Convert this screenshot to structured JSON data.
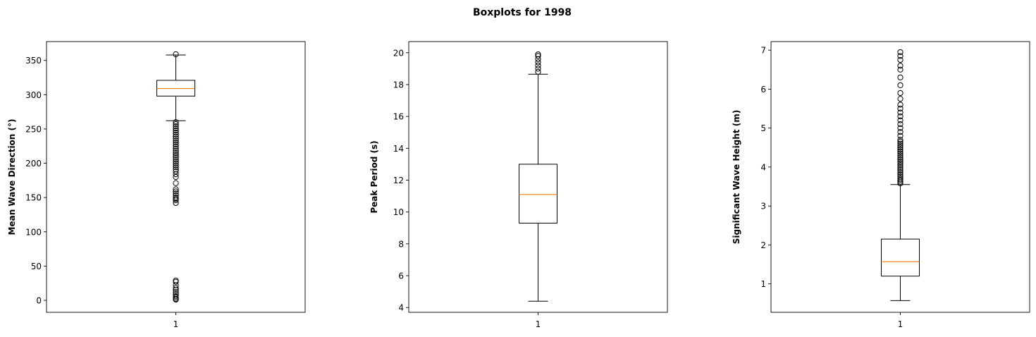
{
  "figure": {
    "title": "Boxplots for 1998"
  },
  "chart_data": [
    {
      "type": "boxplot",
      "ylabel": "Mean Wave Direction (°)",
      "ylim": [
        -17.5,
        377.5
      ],
      "yticks": [
        0,
        50,
        100,
        150,
        200,
        250,
        300,
        350
      ],
      "xticks": [
        "1"
      ],
      "box": {
        "whisker_low": 262,
        "q1": 298,
        "median": 309,
        "q3": 321,
        "whisker_high": 358
      },
      "outliers": [
        1,
        2,
        4,
        6,
        9,
        12,
        15,
        18,
        22,
        27,
        29,
        142,
        146,
        148,
        150,
        153,
        156,
        159,
        162,
        171,
        180,
        184,
        188,
        191,
        194,
        197,
        200,
        203,
        206,
        209,
        212,
        215,
        218,
        221,
        224,
        227,
        230,
        233,
        236,
        239,
        242,
        245,
        248,
        251,
        254,
        257,
        260,
        359
      ]
    },
    {
      "type": "boxplot",
      "ylabel": "Peak Period (s)",
      "ylim": [
        3.7,
        20.7
      ],
      "yticks": [
        4,
        6,
        8,
        10,
        12,
        14,
        16,
        18,
        20
      ],
      "xticks": [
        "1"
      ],
      "box": {
        "whisker_low": 4.4,
        "q1": 9.3,
        "median": 11.1,
        "q3": 13.0,
        "whisker_high": 18.65
      },
      "outliers": [
        18.8,
        19.0,
        19.2,
        19.4,
        19.6,
        19.8,
        19.9
      ]
    },
    {
      "type": "boxplot",
      "ylabel": "Significant Wave Height (m)",
      "ylim": [
        0.27,
        7.22
      ],
      "yticks": [
        1,
        2,
        3,
        4,
        5,
        6,
        7
      ],
      "xticks": [
        "1"
      ],
      "box": {
        "whisker_low": 0.57,
        "q1": 1.2,
        "median": 1.57,
        "q3": 2.15,
        "whisker_high": 3.55
      },
      "outliers": [
        3.58,
        3.62,
        3.66,
        3.7,
        3.75,
        3.8,
        3.85,
        3.9,
        3.95,
        4.0,
        4.05,
        4.1,
        4.15,
        4.2,
        4.25,
        4.3,
        4.35,
        4.4,
        4.45,
        4.5,
        4.55,
        4.6,
        4.65,
        4.7,
        4.8,
        4.9,
        5.0,
        5.1,
        5.2,
        5.3,
        5.4,
        5.5,
        5.6,
        5.75,
        5.9,
        6.1,
        6.3,
        6.5,
        6.6,
        6.75,
        6.85,
        6.95
      ]
    }
  ],
  "colors": {
    "axes": "#000000",
    "median": "#ff7f0e",
    "box": "#000000",
    "background": "#ffffff"
  }
}
